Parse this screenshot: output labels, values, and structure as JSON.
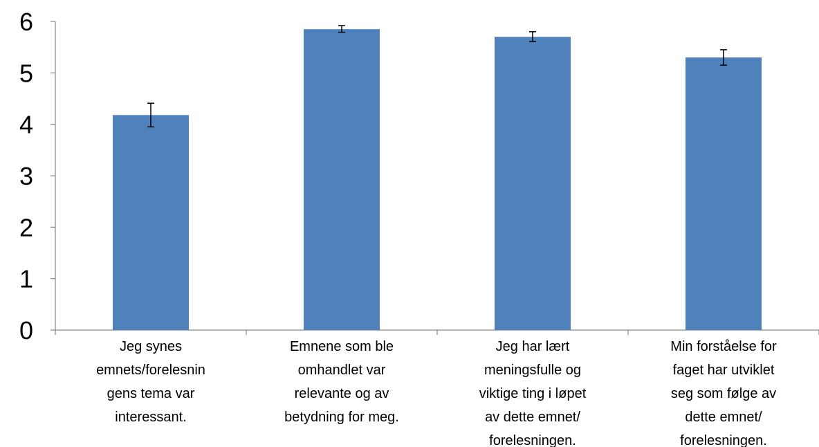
{
  "chart_data": {
    "type": "bar",
    "title": "",
    "xlabel": "",
    "ylabel": "",
    "ylim": [
      0,
      6
    ],
    "yticks": [
      0,
      1,
      2,
      3,
      4,
      5,
      6
    ],
    "grid": false,
    "legend": "none",
    "bar_color": "#4F81BD",
    "categories": [
      [
        "Jeg synes",
        "emnets/forelesnin",
        "gens tema var",
        "interessant."
      ],
      [
        "Emnene som ble",
        "omhandlet var",
        "relevante og av",
        "betydning for meg."
      ],
      [
        "Jeg har lært",
        "meningsfulle og",
        "viktige ting i løpet",
        "av dette emnet/",
        "forelesningen."
      ],
      [
        "Min forståelse for",
        "faget har utviklet",
        "seg som følge av",
        "dette emnet/",
        "forelesningen."
      ]
    ],
    "values": [
      4.18,
      5.85,
      5.7,
      5.3
    ],
    "error_bars": [
      {
        "low": 3.95,
        "high": 4.41
      },
      {
        "low": 5.79,
        "high": 5.92
      },
      {
        "low": 5.61,
        "high": 5.8
      },
      {
        "low": 5.15,
        "high": 5.45
      }
    ]
  }
}
